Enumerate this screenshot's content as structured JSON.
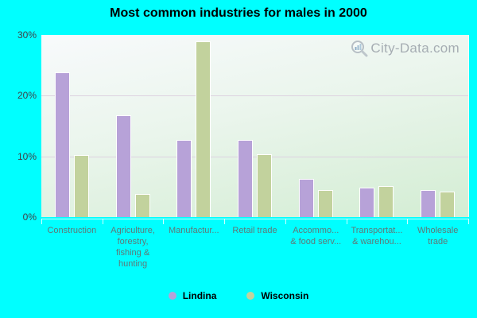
{
  "title": "Most common industries for males in 2000",
  "watermark": {
    "text": "City-Data.com"
  },
  "colors": {
    "background": "#00ffff",
    "lindina": "#b7a2d8",
    "wisconsin": "#c2d29d",
    "gridline": "#ddd2e0",
    "bar_outline": "#ffffff"
  },
  "chart_data": {
    "type": "bar",
    "title": "Most common industries for males in 2000",
    "categories": [
      "Construction",
      "Agriculture, forestry, fishing & hunting",
      "Manufactur...",
      "Retail trade",
      "Accommo... & food serv...",
      "Transportat... & warehou...",
      "Wholesale trade"
    ],
    "category_display_lines": [
      [
        "Construction"
      ],
      [
        "Agriculture,",
        "forestry,",
        "fishing &",
        "hunting"
      ],
      [
        "Manufactur..."
      ],
      [
        "Retail trade"
      ],
      [
        "Accommo...",
        "& food serv..."
      ],
      [
        "Transportat...",
        "& warehou..."
      ],
      [
        "Wholesale",
        "trade"
      ]
    ],
    "series": [
      {
        "name": "Lindina",
        "color": "#b7a2d8",
        "values": [
          23.8,
          16.8,
          12.7,
          12.7,
          6.3,
          4.8,
          4.4
        ]
      },
      {
        "name": "Wisconsin",
        "color": "#c2d29d",
        "values": [
          10.2,
          3.8,
          28.9,
          10.3,
          4.4,
          5.1,
          4.2
        ]
      }
    ],
    "xlabel": "",
    "ylabel": "",
    "y_ticks": [
      "0%",
      "10%",
      "20%",
      "30%"
    ],
    "ylim": [
      0,
      30
    ],
    "grid": "horizontal",
    "legend_position": "bottom"
  },
  "legend": {
    "items": [
      {
        "label": "Lindina",
        "color": "#b7a2d8"
      },
      {
        "label": "Wisconsin",
        "color": "#c2d29d"
      }
    ]
  }
}
